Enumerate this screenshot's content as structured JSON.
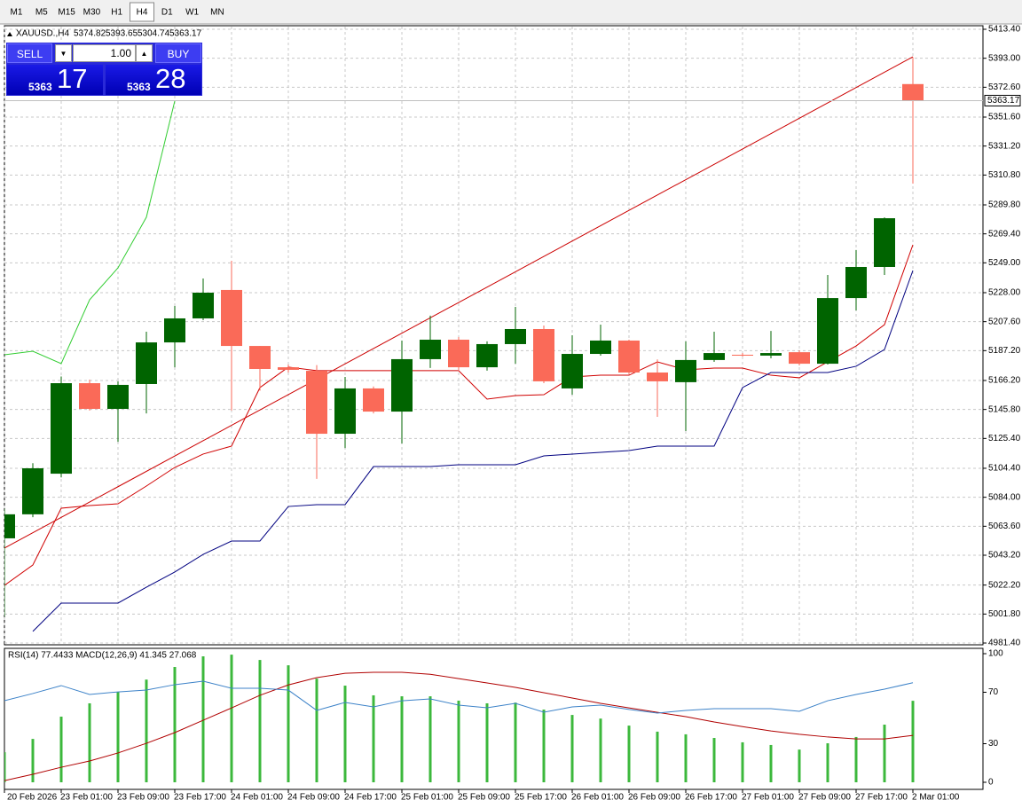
{
  "toolbar": {
    "timeframes": [
      "M1",
      "M5",
      "M15",
      "M30",
      "H1",
      "H4",
      "D1",
      "W1",
      "MN"
    ],
    "selected": "H4"
  },
  "trade_panel": {
    "sell": "SELL",
    "buy": "BUY",
    "lot": "1.00",
    "bid_big": "5363",
    "bid_small": "17",
    "ask_big": "5363",
    "ask_small": "28"
  },
  "chart_data": [
    {
      "type": "candlestick",
      "title": "XAUUSD.,H4",
      "categories": [
        "20 Feb 2026",
        null,
        "23 Feb 01:00",
        null,
        "23 Feb 09:00",
        null,
        "23 Feb 17:00",
        null,
        "24 Feb 01:00",
        null,
        "24 Feb 09:00",
        null,
        "24 Feb 17:00",
        null,
        "25 Feb 01:00",
        null,
        "25 Feb 09:00",
        null,
        "25 Feb 17:00",
        null,
        "26 Feb 01:00",
        null,
        "26 Feb 09:00",
        null,
        "26 Feb 17:00",
        null,
        "27 Feb 01:00",
        null,
        "27 Feb 09:00",
        null,
        "27 Feb 17:00",
        null,
        "2 Mar 01:00"
      ],
      "open": [
        5055.1,
        5072.0,
        5100.6,
        5164.3,
        5146.2,
        5163.7,
        5193.0,
        5209.9,
        5229.9,
        5190.5,
        5175.5,
        5173.0,
        5128.7,
        5160.6,
        5144.3,
        5181.2,
        5194.9,
        5175.5,
        5191.8,
        5202.4,
        5160.6,
        5184.9,
        5194.3,
        5171.8,
        5165.0,
        5180.6,
        5184.3,
        5183.7,
        5186.1,
        5178.0,
        5224.2,
        5246.1,
        5374.82
      ],
      "high": [
        5076.0,
        5108.0,
        5169.0,
        5166.8,
        5165.6,
        5200.5,
        5218.6,
        5238.0,
        5250.5,
        5190.5,
        5177.4,
        5177.0,
        5168.7,
        5162.0,
        5194.3,
        5211.8,
        5196.8,
        5193.7,
        5218.0,
        5204.9,
        5198.0,
        5205.5,
        5194.9,
        5181.0,
        5193.7,
        5200.5,
        5185.5,
        5201.1,
        5187.4,
        5240.5,
        5258.0,
        5281.0,
        5393.65
      ],
      "low": [
        5000.0,
        5070.0,
        5098.0,
        5145.0,
        5123.0,
        5143.0,
        5175.5,
        5208.6,
        5145.0,
        5159.0,
        5171.8,
        5097.0,
        5118.7,
        5143.0,
        5121.9,
        5175.0,
        5173.7,
        5173.1,
        5178.0,
        5164.3,
        5156.2,
        5183.7,
        5170.6,
        5140.6,
        5130.6,
        5179.3,
        5183.1,
        5181.8,
        5176.8,
        5177.4,
        5215.5,
        5240.5,
        5304.74
      ],
      "close": [
        5072.0,
        5104.4,
        5164.3,
        5146.2,
        5163.1,
        5193.0,
        5209.9,
        5228.0,
        5190.5,
        5174.3,
        5173.7,
        5128.7,
        5160.6,
        5144.3,
        5181.2,
        5194.9,
        5175.5,
        5191.8,
        5202.4,
        5165.6,
        5184.9,
        5194.3,
        5171.8,
        5165.6,
        5180.6,
        5185.5,
        5183.7,
        5185.5,
        5178.0,
        5224.2,
        5246.1,
        5280.4,
        5363.17
      ],
      "up_color": "#006400",
      "down_color": "#fa6a58",
      "lines": [
        {
          "color": "#d00000",
          "values": [
            5022.0,
            5036.3,
            5076.3,
            5078.2,
            5079.4,
            5091.9,
            5105.0,
            5114.4,
            5120.0,
            5161.2,
            5175.6,
            5173.1,
            5173.1,
            5173.1,
            5173.1,
            5173.1,
            5173.1,
            5153.1,
            5155.6,
            5156.2,
            5168.7,
            5169.9,
            5169.9,
            5179.3,
            5173.7,
            5174.9,
            5174.9,
            5169.9,
            5168.1,
            5179.3,
            5190.5,
            5205.5,
            5261.7
          ]
        },
        {
          "color": "#000080",
          "values": [
            null,
            4989.6,
            5009.5,
            5009.5,
            5009.5,
            5020.7,
            5031.4,
            5043.8,
            5053.2,
            5053.2,
            5077.5,
            5078.8,
            5078.8,
            5105.6,
            5105.6,
            5105.6,
            5106.9,
            5106.9,
            5106.9,
            5113.1,
            5114.4,
            5115.6,
            5116.9,
            5120.0,
            5120.0,
            5120.0,
            5161.2,
            5171.8,
            5171.8,
            5171.8,
            5176.2,
            5188.0,
            5243.6
          ]
        },
        {
          "color": "#32cd32",
          "values": [
            5184.3,
            5186.8,
            5178.1,
            5223.0,
            5245.5,
            5281.1,
            5362.9,
            null,
            null,
            null,
            null,
            null,
            null,
            null,
            null,
            null,
            null,
            null,
            null,
            null,
            null,
            null,
            null,
            null,
            null,
            null,
            null,
            null,
            null,
            null,
            null,
            null,
            null
          ]
        }
      ],
      "trendline": {
        "color": "#cc0000",
        "values": [
          5048.2,
          5394.0
        ]
      },
      "ylim": [
        4981.4,
        5413.4
      ],
      "yticks": [
        {
          "value": 4981.4,
          "label": "4981.40"
        },
        {
          "value": 5001.8,
          "label": "5001.80"
        },
        {
          "value": 5022.2,
          "label": "5022.20"
        },
        {
          "value": 5043.2,
          "label": "5043.20"
        },
        {
          "value": 5063.6,
          "label": "5063.60"
        },
        {
          "value": 5084.0,
          "label": "5084.00"
        },
        {
          "value": 5104.4,
          "label": "5104.40"
        },
        {
          "value": 5125.4,
          "label": "5125.40"
        },
        {
          "value": 5145.8,
          "label": "5145.80"
        },
        {
          "value": 5166.2,
          "label": "5166.20"
        },
        {
          "value": 5187.2,
          "label": "5187.20"
        },
        {
          "value": 5207.6,
          "label": "5207.60"
        },
        {
          "value": 5228.0,
          "label": "5228.00"
        },
        {
          "value": 5249.0,
          "label": "5249.00"
        },
        {
          "value": 5269.4,
          "label": "5269.40"
        },
        {
          "value": 5289.8,
          "label": "5289.80"
        },
        {
          "value": 5310.8,
          "label": "5310.80"
        },
        {
          "value": 5331.2,
          "label": "5331.20"
        },
        {
          "value": 5351.6,
          "label": "5351.60"
        },
        {
          "value": 5372.6,
          "label": "5372.60"
        },
        {
          "value": 5393.0,
          "label": "5393.00"
        },
        {
          "value": 5413.4,
          "label": "5413.40"
        }
      ],
      "grid": true
    },
    {
      "type": "oscillator",
      "title": "RSI(14) 77.4433 MACD(12,26,9) 41.345 27.068",
      "series": [
        {
          "style": "bar",
          "axis": "y2",
          "color": "#3cb83c",
          "values": [
            20.1,
            25.6,
            34.8,
            40.3,
            45.0,
            50.1,
            55.3,
            59.7,
            60.4,
            58.2,
            56.0,
            50.5,
            47.6,
            43.6,
            43.2,
            43.2,
            41.4,
            40.3,
            40.6,
            37.7,
            35.5,
            34.0,
            31.1,
            28.6,
            27.5,
            26.0,
            24.2,
            23.1,
            21.2,
            23.8,
            26.4,
            31.5,
            41.345
          ]
        },
        {
          "style": "line",
          "axis": "y2",
          "color": "#b00000",
          "values": [
            8.4,
            11.0,
            13.9,
            16.5,
            19.8,
            23.8,
            28.2,
            33.3,
            38.4,
            43.6,
            47.9,
            50.9,
            52.7,
            53.1,
            53.1,
            52.3,
            50.5,
            48.7,
            46.9,
            44.7,
            42.5,
            40.3,
            38.4,
            36.6,
            34.8,
            32.6,
            30.7,
            28.9,
            27.5,
            26.4,
            25.6,
            25.6,
            27.068
          ]
        },
        {
          "style": "line",
          "color": "#3c82c8",
          "values": [
            63.4,
            69.0,
            75.2,
            68.3,
            70.3,
            71.7,
            75.9,
            78.6,
            73.1,
            73.1,
            71.7,
            55.9,
            62.1,
            58.6,
            63.4,
            64.8,
            60.0,
            57.9,
            61.4,
            54.5,
            58.6,
            60.0,
            56.6,
            53.8,
            55.9,
            57.2,
            57.2,
            57.2,
            55.2,
            63.4,
            68.3,
            72.4,
            77.4433
          ]
        }
      ],
      "ylim": [
        0,
        100
      ],
      "yticks": [
        0,
        30,
        70,
        100
      ],
      "y2lim": [
        7.7,
        60.8
      ],
      "grid": false
    }
  ]
}
